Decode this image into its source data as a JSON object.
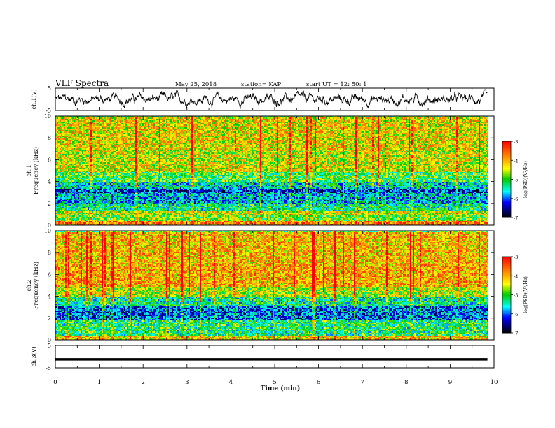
{
  "header": {
    "title": "VLF Spectra",
    "date": "May 25, 2018",
    "station": "station= KAP",
    "start": "start UT =  12: 50: 1"
  },
  "chart_data": [
    {
      "type": "line",
      "name": "ch1-voltage",
      "ylabel": "ch.1(V)",
      "xlim": [
        0,
        10
      ],
      "ylim": [
        -5,
        5
      ],
      "y_ticklabels": [
        "5",
        "-5"
      ],
      "data_end_min": 9.85,
      "signal": "noisy trace fluctuating roughly between -3 V and +3 V"
    },
    {
      "type": "heatmap",
      "name": "ch1-spectrogram",
      "ylabel": "ch.1 Frequency (kHz)",
      "xlim": [
        0,
        10
      ],
      "ylim": [
        0,
        10
      ],
      "y_ticks": [
        0,
        2,
        4,
        6,
        8,
        10
      ],
      "data_end_min": 9.85,
      "colorbar": {
        "label": "log(PSD)(V²/Hz)",
        "range": [
          -7,
          -3
        ],
        "ticks": [
          -3,
          -4,
          -5,
          -6,
          -7
        ]
      },
      "bands_khz": [
        {
          "from": 0,
          "to": 0.5,
          "level": -3.8
        },
        {
          "from": 0.5,
          "to": 1.0,
          "level": -4.8
        },
        {
          "from": 1.0,
          "to": 1.3,
          "level": -4.5
        },
        {
          "from": 1.3,
          "to": 2.0,
          "level": -5.3
        },
        {
          "from": 2.0,
          "to": 3.0,
          "level": -5.7
        },
        {
          "from": 3.0,
          "to": 3.4,
          "level": -6.2
        },
        {
          "from": 3.4,
          "to": 4.0,
          "level": -5.5
        },
        {
          "from": 4.0,
          "to": 5.0,
          "level": -5.0
        },
        {
          "from": 5.0,
          "to": 5.6,
          "level": -4.4
        },
        {
          "from": 5.6,
          "to": 7.0,
          "level": -4.5
        },
        {
          "from": 7.0,
          "to": 10.0,
          "level": -4.3
        }
      ]
    },
    {
      "type": "heatmap",
      "name": "ch2-spectrogram",
      "ylabel": "ch.2 Frequency (kHz)",
      "xlim": [
        0,
        10
      ],
      "ylim": [
        0,
        10
      ],
      "y_ticks": [
        0,
        2,
        4,
        6,
        8,
        10
      ],
      "data_end_min": 9.85,
      "colorbar": {
        "label": "log(PSD)(V²/Hz)",
        "range": [
          -7,
          -3
        ],
        "ticks": [
          -3,
          -4,
          -5,
          -6,
          -7
        ]
      },
      "bands_khz": [
        {
          "from": 0,
          "to": 0.5,
          "level": -4.2
        },
        {
          "from": 0.5,
          "to": 1.8,
          "level": -5.2
        },
        {
          "from": 1.8,
          "to": 3.2,
          "level": -6.0
        },
        {
          "from": 3.2,
          "to": 4.0,
          "level": -5.3
        },
        {
          "from": 4.0,
          "to": 5.0,
          "level": -4.6
        },
        {
          "from": 5.0,
          "to": 7.0,
          "level": -4.0
        },
        {
          "from": 7.0,
          "to": 10.0,
          "level": -4.1
        }
      ]
    },
    {
      "type": "line",
      "name": "ch3-voltage",
      "ylabel": "ch.3(V)",
      "xlabel": "Time (min)",
      "xlim": [
        0,
        10
      ],
      "ylim": [
        -5,
        5
      ],
      "y_ticklabels": [
        "5",
        "-5"
      ],
      "x_ticks": [
        0,
        1,
        2,
        3,
        4,
        5,
        6,
        7,
        8,
        9,
        10
      ],
      "data_end_min": 9.85,
      "constant_value": -1.2
    }
  ]
}
